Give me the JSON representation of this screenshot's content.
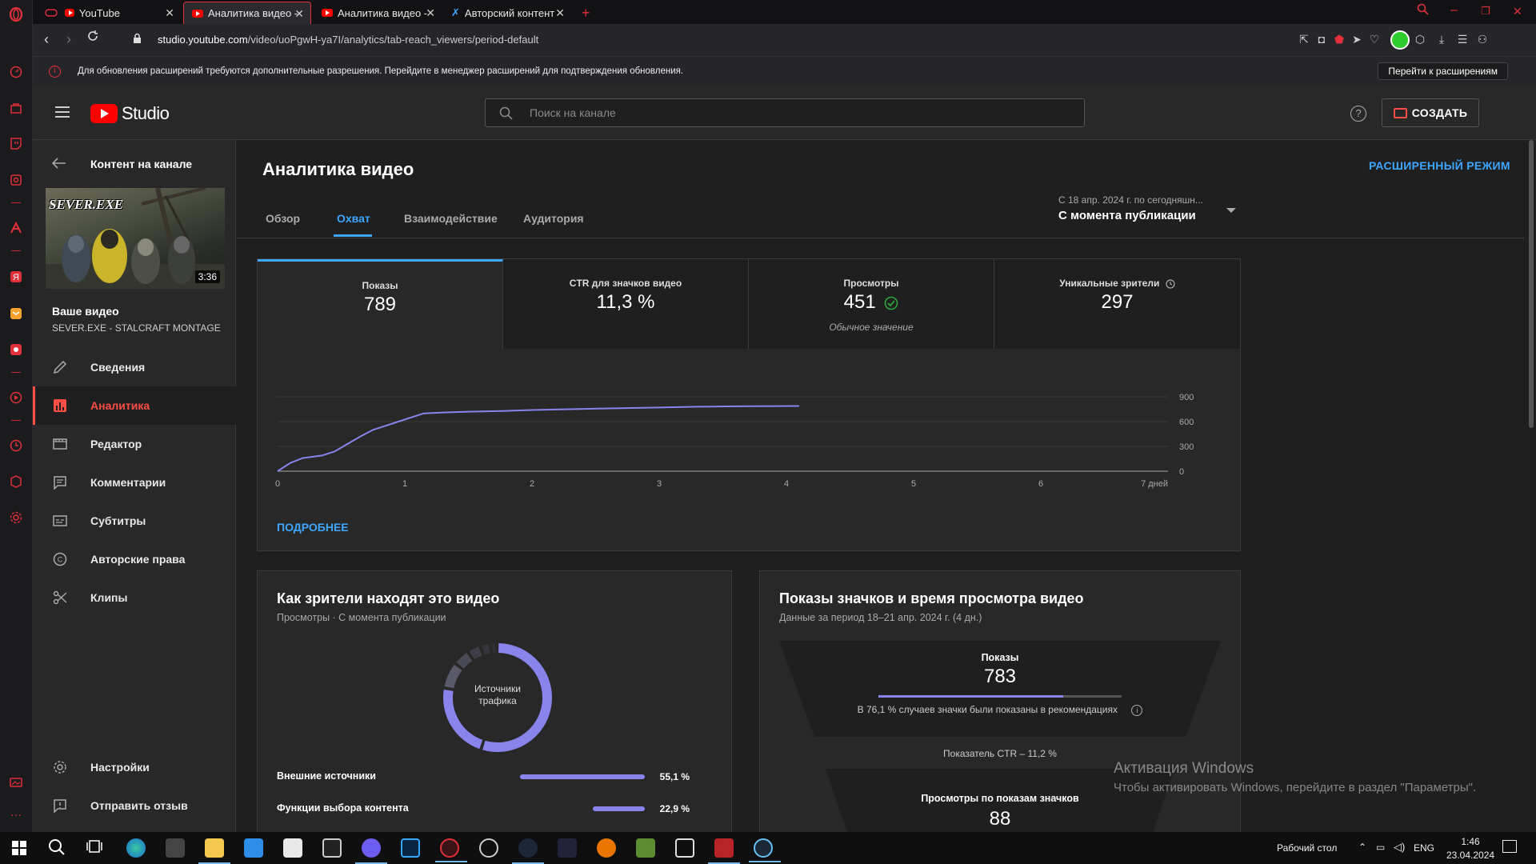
{
  "browser": {
    "tabs": [
      {
        "title": "YouTube"
      },
      {
        "title": "Аналитика видео - YouTube"
      },
      {
        "title": "Аналитика видео - YouTube"
      },
      {
        "title": "Авторский контент - EXBO"
      }
    ],
    "url_host": "studio.youtube.com",
    "url_path": "/video/uoPgwH-ya7I/analytics/tab-reach_viewers/period-default",
    "notice": {
      "message": "Для обновления расширений требуются дополнительные разрешения. Перейдите в менеджер расширений для подтверждения обновления.",
      "button": "Перейти к расширениям"
    }
  },
  "header": {
    "logo_text": "Studio",
    "search_placeholder": "Поиск на канале",
    "help_glyph": "?",
    "create_label": "СОЗДАТЬ"
  },
  "sidebar": {
    "title": "Контент на канале",
    "thumb_title": "SEVER.EXE",
    "thumb_duration": "3:36",
    "your_video_label": "Ваше видео",
    "video_name": "SEVER.EXE - STALCRAFT MONTAGE",
    "items": [
      {
        "label": "Сведения",
        "icon": "pencil-icon"
      },
      {
        "label": "Аналитика",
        "icon": "analytics-icon"
      },
      {
        "label": "Редактор",
        "icon": "editor-icon"
      },
      {
        "label": "Комментарии",
        "icon": "comments-icon"
      },
      {
        "label": "Субтитры",
        "icon": "subtitles-icon"
      },
      {
        "label": "Авторские права",
        "icon": "copyright-icon"
      },
      {
        "label": "Клипы",
        "icon": "scissors-icon"
      }
    ],
    "settings_label": "Настройки",
    "feedback_label": "Отправить отзыв"
  },
  "main": {
    "title": "Аналитика видео",
    "advanced_mode": "РАСШИРЕННЫЙ РЕЖИМ",
    "tabs": [
      {
        "label": "Обзор"
      },
      {
        "label": "Охват"
      },
      {
        "label": "Взаимодействие"
      },
      {
        "label": "Аудитория"
      }
    ],
    "period_range": "С 18 апр. 2024 г. по сегодняшн...",
    "period_label": "С момента публикации",
    "metrics": [
      {
        "label": "Показы",
        "value": "789"
      },
      {
        "label": "CTR для значков видео",
        "value": "11,3 %"
      },
      {
        "label": "Просмотры",
        "value": "451",
        "sub": "Обычное значение"
      },
      {
        "label": "Уникальные зрители",
        "value": "297"
      }
    ],
    "more_link": "ПОДРОБНЕЕ"
  },
  "chart_data": {
    "type": "line",
    "series": [
      {
        "x": [
          0,
          0.1,
          0.2,
          0.35,
          0.45,
          0.55,
          0.65,
          0.75,
          0.85,
          0.95,
          1.05,
          1.15,
          1.3,
          1.5,
          1.8,
          2.0,
          2.3,
          2.6,
          3.0,
          3.3,
          3.6,
          4.1
        ],
        "y": [
          0,
          100,
          160,
          190,
          240,
          330,
          420,
          500,
          550,
          600,
          650,
          700,
          710,
          720,
          730,
          740,
          750,
          760,
          770,
          780,
          785,
          789
        ]
      }
    ],
    "x_ticks": [
      "0",
      "1",
      "2",
      "3",
      "4",
      "5",
      "6",
      "7 дней"
    ],
    "y_ticks": [
      "0",
      "300",
      "600",
      "900"
    ],
    "xlim": [
      0,
      7
    ],
    "ylim": [
      0,
      900
    ],
    "line_color": "#8884ec"
  },
  "traffic": {
    "title": "Как зрители находят это видео",
    "subtitle": "Просмотры · С момента публикации",
    "donut_label": "Источники трафика",
    "sources": [
      {
        "label": "Внешние источники",
        "value": "55,1 %",
        "fraction": 0.551
      },
      {
        "label": "Функции выбора контента",
        "value": "22,9 %",
        "fraction": 0.229
      }
    ],
    "donut_slices": [
      0.551,
      0.229,
      0.08,
      0.05,
      0.04,
      0.03,
      0.02
    ]
  },
  "impressions": {
    "title": "Показы значков и время просмотра видео",
    "subtitle": "Данные за период 18–21 апр. 2024 г. (4 дн.)",
    "impressions_label": "Показы",
    "impressions_value": "783",
    "recommended_fraction": 0.761,
    "recommended_note": "В 76,1 % случаев значки были показаны в рекомендациях",
    "ctr_note": "Показатель CTR – 11,2 %",
    "views_label": "Просмотры по показам значков",
    "views_value": "88"
  },
  "watermark": {
    "line1": "Активация Windows",
    "line2": "Чтобы активировать Windows, перейдите в раздел \"Параметры\"."
  },
  "taskbar": {
    "desktop_label": "Рабочий стол",
    "lang": "ENG",
    "time": "1:46",
    "date": "23.04.2024"
  }
}
